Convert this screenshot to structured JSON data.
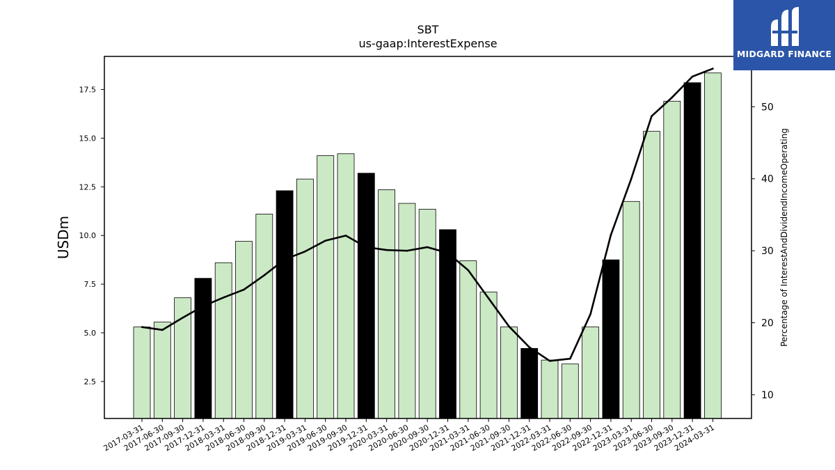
{
  "chart_data": {
    "type": "bar",
    "title": "SBT",
    "subtitle": "us-gaap:InterestExpense",
    "ylabel": "USDm",
    "y2label": "Percentage of InterestAndDividendIncomeOperating",
    "ylim": [
      0.6,
      19.2
    ],
    "y2lim": [
      6.7,
      57.0
    ],
    "yticks": [
      "2.5",
      "5.0",
      "7.5",
      "10.0",
      "12.5",
      "15.0",
      "17.5"
    ],
    "y2ticks": [
      "10",
      "20",
      "30",
      "40",
      "50"
    ],
    "categories": [
      "2017-03-31",
      "2017-06-30",
      "2017-09-30",
      "2017-12-31",
      "2018-03-31",
      "2018-06-30",
      "2018-09-30",
      "2018-12-31",
      "2019-03-31",
      "2019-06-30",
      "2019-09-30",
      "2019-12-31",
      "2020-03-31",
      "2020-06-30",
      "2020-09-30",
      "2020-12-31",
      "2021-03-31",
      "2021-06-30",
      "2021-09-30",
      "2021-12-31",
      "2022-03-31",
      "2022-06-30",
      "2022-09-30",
      "2022-12-31",
      "2023-03-31",
      "2023-06-30",
      "2023-09-30",
      "2023-12-31",
      "2024-03-31"
    ],
    "series": [
      {
        "type": "bar",
        "values": [
          5.3,
          5.55,
          6.8,
          7.8,
          8.6,
          9.7,
          11.1,
          12.3,
          12.9,
          14.1,
          14.2,
          13.2,
          12.35,
          11.65,
          11.35,
          10.3,
          8.7,
          7.1,
          5.3,
          4.2,
          3.6,
          3.4,
          5.3,
          8.75,
          11.75,
          15.35,
          16.9,
          17.85,
          18.35
        ],
        "colors": [
          "#cce9c5",
          "#cce9c5",
          "#cce9c5",
          "#000000",
          "#cce9c5",
          "#cce9c5",
          "#cce9c5",
          "#000000",
          "#cce9c5",
          "#cce9c5",
          "#cce9c5",
          "#000000",
          "#cce9c5",
          "#cce9c5",
          "#cce9c5",
          "#000000",
          "#cce9c5",
          "#cce9c5",
          "#cce9c5",
          "#000000",
          "#cce9c5",
          "#cce9c5",
          "#cce9c5",
          "#000000",
          "#cce9c5",
          "#cce9c5",
          "#cce9c5",
          "#000000",
          "#cce9c5"
        ]
      },
      {
        "type": "line",
        "axis": "right",
        "color": "#000000",
        "values": [
          19.4,
          19.0,
          20.7,
          22.3,
          23.5,
          24.6,
          26.6,
          28.8,
          29.9,
          31.4,
          32.1,
          30.5,
          30.1,
          30.0,
          30.5,
          29.7,
          27.3,
          23.4,
          19.5,
          16.6,
          14.7,
          15.0,
          21.2,
          32.2,
          40.0,
          48.7,
          51.3,
          54.2,
          55.3
        ]
      }
    ],
    "grid": false,
    "legend": "none"
  },
  "brand": {
    "name": "MIDGARD FINANCE",
    "logo_icon": "midgard-finance-logo-icon",
    "color": "#2b55a8"
  }
}
